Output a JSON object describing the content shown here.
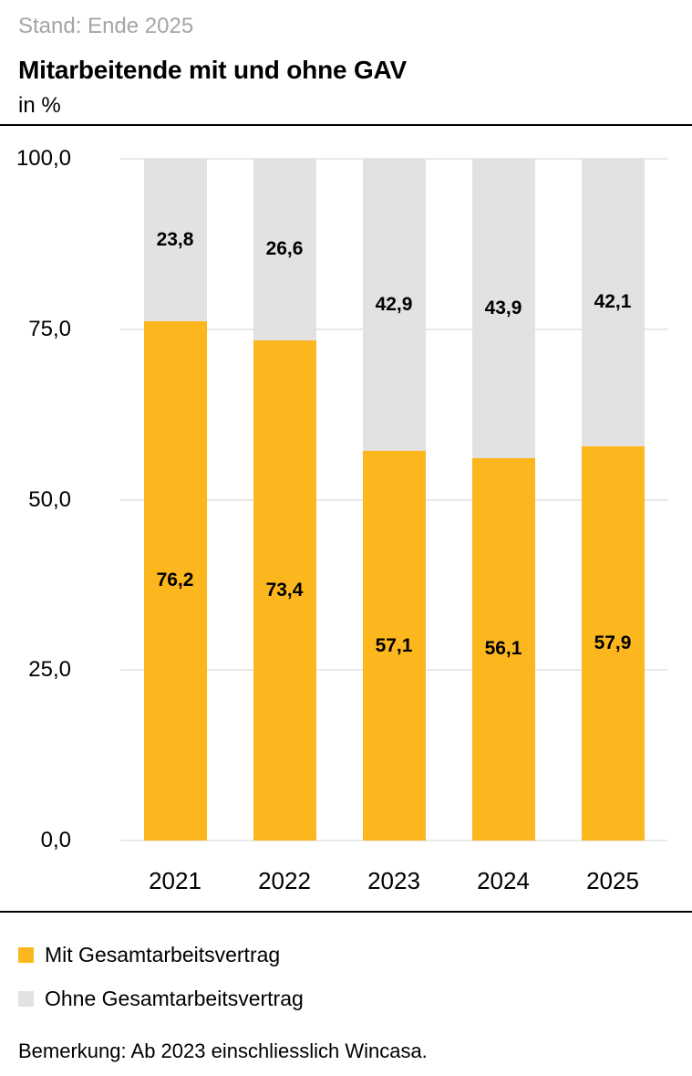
{
  "header": {
    "stand": "Stand: Ende 2025",
    "title": "Mitarbeitende mit und ohne GAV",
    "unit": "in %"
  },
  "chart_data": {
    "type": "bar",
    "stacked": true,
    "title": "Mitarbeitende mit und ohne GAV",
    "ylabel": "in %",
    "xlabel": "",
    "categories": [
      "2021",
      "2022",
      "2023",
      "2024",
      "2025"
    ],
    "series": [
      {
        "name": "Mit Gesamtarbeitsvertrag",
        "color": "#FDB71E",
        "values": [
          76.2,
          73.4,
          57.1,
          56.1,
          57.9
        ],
        "labels": [
          "76,2",
          "73,4",
          "57,1",
          "56,1",
          "57,9"
        ]
      },
      {
        "name": "Ohne Gesamtarbeitsvertrag",
        "color": "#E2E2E2",
        "values": [
          23.8,
          26.6,
          42.9,
          43.9,
          42.1
        ],
        "labels": [
          "23,8",
          "26,6",
          "42,9",
          "43,9",
          "42,1"
        ]
      }
    ],
    "ylim": [
      0,
      100
    ],
    "y_ticks": [
      {
        "value": 0,
        "label": "0,0"
      },
      {
        "value": 25,
        "label": "25,0"
      },
      {
        "value": 50,
        "label": "50,0"
      },
      {
        "value": 75,
        "label": "75,0"
      },
      {
        "value": 100,
        "label": "100,0"
      }
    ],
    "grid": true,
    "gridline_color": "#E9E9E9",
    "legend_position": "bottom"
  },
  "legend": {
    "items": [
      {
        "label": "Mit Gesamtarbeitsvertrag",
        "color": "#FDB71E"
      },
      {
        "label": "Ohne Gesamtarbeitsvertrag",
        "color": "#E2E2E2"
      }
    ]
  },
  "note": "Bemerkung: Ab 2023 einschliesslich Wincasa."
}
